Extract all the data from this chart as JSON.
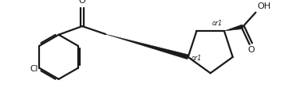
{
  "bg_color": "#ffffff",
  "line_color": "#1a1a1a",
  "line_width": 1.6,
  "font_size": 7.5,
  "or1_font_size": 5.8,
  "figsize": [
    3.66,
    1.4
  ],
  "dpi": 100,
  "xlim": [
    0.0,
    10.2
  ],
  "ylim": [
    0.0,
    3.8
  ]
}
